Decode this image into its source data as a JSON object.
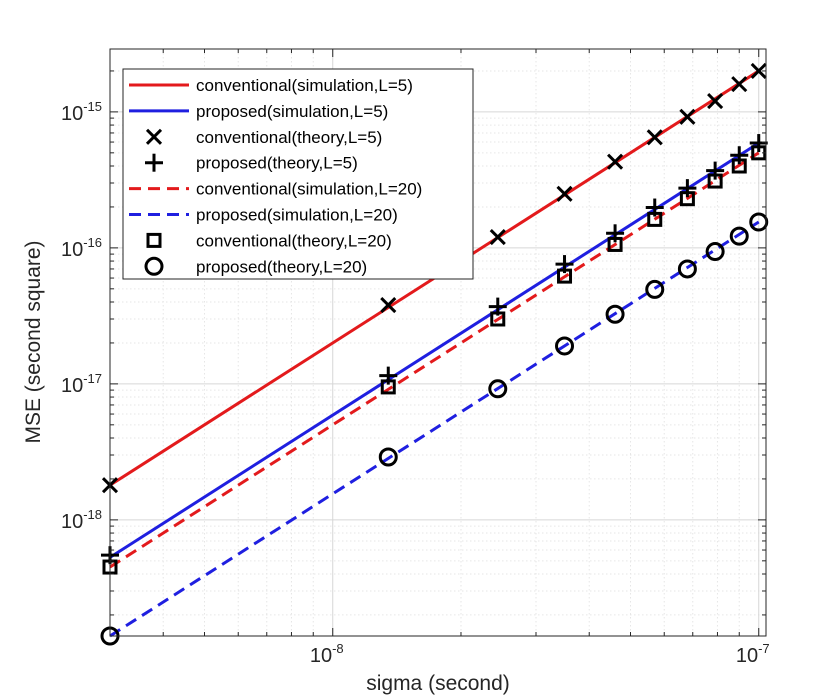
{
  "chart_data": {
    "type": "line",
    "xscale": "log",
    "yscale": "log",
    "xlabel": "sigma (second)",
    "ylabel": "MSE (second square)",
    "xlim": [
      3e-09,
      1.04e-07
    ],
    "ylim": [
      1.4e-19,
      2.9e-15
    ],
    "grid": true,
    "minor_grid": true,
    "legend_position": "top-left",
    "x_ticks": [
      {
        "value": 1e-08,
        "base": "10",
        "exp": "-8"
      },
      {
        "value": 1e-07,
        "base": "10",
        "exp": "-7"
      }
    ],
    "y_ticks": [
      {
        "value": 1e-18,
        "base": "10",
        "exp": "-18"
      },
      {
        "value": 1e-17,
        "base": "10",
        "exp": "-17"
      },
      {
        "value": 1e-16,
        "base": "10",
        "exp": "-16"
      },
      {
        "value": 1e-15,
        "base": "10",
        "exp": "-15"
      }
    ],
    "series": [
      {
        "name": "conventional(simulation,L=5)",
        "kind": "line",
        "dash": "solid",
        "color": "#e31a1c",
        "x": [
          3e-09,
          1e-07
        ],
        "y": [
          1.8e-18,
          2e-15
        ]
      },
      {
        "name": "proposed(simulation,L=5)",
        "kind": "line",
        "dash": "solid",
        "color": "#1f1fe0",
        "x": [
          3e-09,
          1e-07
        ],
        "y": [
          5.3e-19,
          5.9e-16
        ]
      },
      {
        "name": "conventional(theory,L=5)",
        "kind": "marker",
        "marker": "x",
        "color": "#000000",
        "x": [
          3e-09,
          1.35e-08,
          2.44e-08,
          3.5e-08,
          4.6e-08,
          5.7e-08,
          6.8e-08,
          7.9e-08,
          9e-08,
          1e-07
        ],
        "y": [
          1.8e-18,
          3.8e-17,
          1.2e-16,
          2.5e-16,
          4.3e-16,
          6.5e-16,
          9.2e-16,
          1.2e-15,
          1.6e-15,
          2e-15
        ]
      },
      {
        "name": "proposed(theory,L=5)",
        "kind": "marker",
        "marker": "+",
        "color": "#000000",
        "x": [
          3e-09,
          1.35e-08,
          2.44e-08,
          3.5e-08,
          4.6e-08,
          5.7e-08,
          6.8e-08,
          7.9e-08,
          9e-08,
          1e-07
        ],
        "y": [
          5.5e-19,
          1.15e-17,
          3.7e-17,
          7.6e-17,
          1.28e-16,
          1.98e-16,
          2.75e-16,
          3.7e-16,
          4.8e-16,
          5.9e-16
        ]
      },
      {
        "name": "conventional(simulation,L=20)",
        "kind": "line",
        "dash": "dashed",
        "color": "#e31a1c",
        "x": [
          3e-09,
          1e-07
        ],
        "y": [
          4.5e-19,
          5e-16
        ]
      },
      {
        "name": "proposed(simulation,L=20)",
        "kind": "line",
        "dash": "dashed",
        "color": "#1f1fe0",
        "x": [
          3e-09,
          1e-07
        ],
        "y": [
          1.4e-19,
          1.55e-16
        ]
      },
      {
        "name": "conventional(theory,L=20)",
        "kind": "marker",
        "marker": "square",
        "color": "#000000",
        "x": [
          3e-09,
          1.35e-08,
          2.44e-08,
          3.5e-08,
          4.6e-08,
          5.7e-08,
          6.8e-08,
          7.9e-08,
          9e-08,
          1e-07
        ],
        "y": [
          4.5e-19,
          9.5e-18,
          3e-17,
          6.2e-17,
          1.06e-16,
          1.62e-16,
          2.3e-16,
          3.1e-16,
          4e-16,
          5e-16
        ]
      },
      {
        "name": "proposed(theory,L=20)",
        "kind": "marker",
        "marker": "circle",
        "color": "#000000",
        "x": [
          3e-09,
          1.35e-08,
          2.44e-08,
          3.5e-08,
          4.6e-08,
          5.7e-08,
          6.8e-08,
          7.9e-08,
          9e-08,
          1e-07
        ],
        "y": [
          1.4e-19,
          2.9e-18,
          9.2e-18,
          1.9e-17,
          3.25e-17,
          4.95e-17,
          7e-17,
          9.4e-17,
          1.22e-16,
          1.55e-16
        ]
      }
    ]
  }
}
